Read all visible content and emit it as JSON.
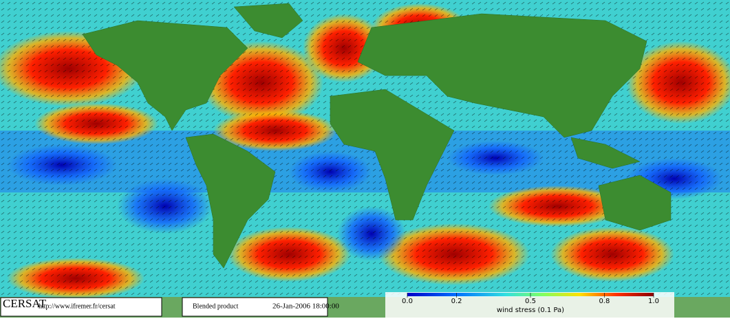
{
  "logo": "CERSAT",
  "url": "http://www.ifremer.fr/cersat",
  "product": "Blended product",
  "date": "26-Jan-2006 18:00:00",
  "colorbar": {
    "lim": [
      0,
      1
    ],
    "ticks": [
      {
        "value": 0,
        "label": "0.0"
      },
      0.2,
      0.5,
      0.8,
      {
        "value": 1,
        "label": "1.0"
      }
    ],
    "label": "wind stress (0.1 Pa)"
  }
}
